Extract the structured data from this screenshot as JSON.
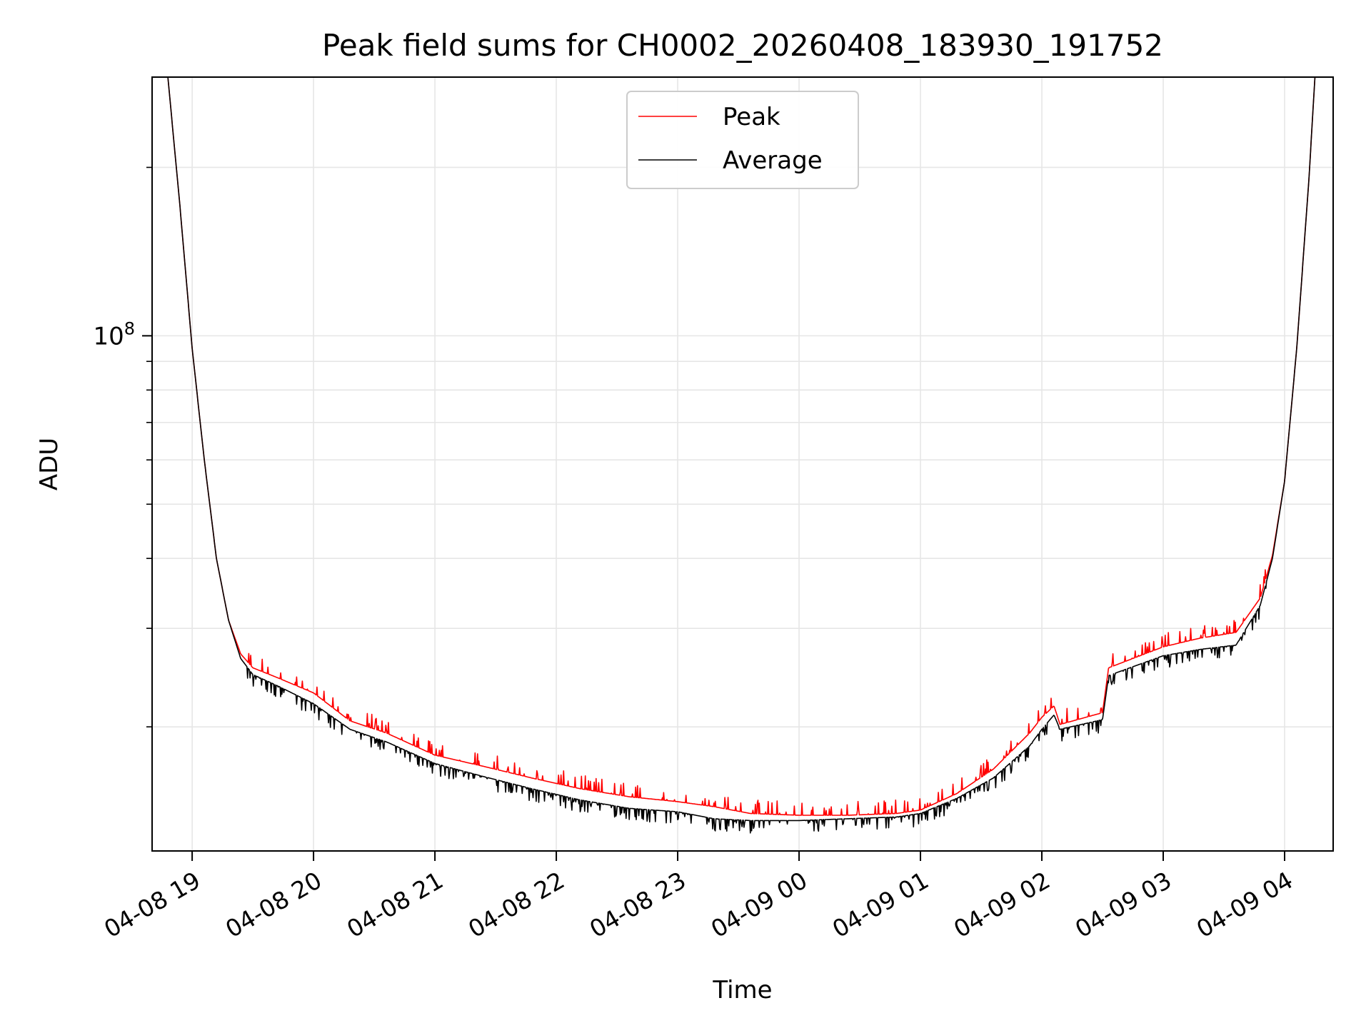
{
  "chart_data": {
    "type": "line",
    "title": "Peak field sums for CH0002_20260408_183930_191752",
    "xlabel": "Time",
    "ylabel": "ADU",
    "yscale": "log",
    "ylim": [
      12000000,
      290000000
    ],
    "xlim_hours": [
      -0.33,
      9.4
    ],
    "x_unit": "hours since 2026-04-08 19:00",
    "grid": true,
    "legend_position": "upper-center",
    "x_ticks": [
      {
        "hour": 0,
        "label": "04-08 19"
      },
      {
        "hour": 1,
        "label": "04-08 20"
      },
      {
        "hour": 2,
        "label": "04-08 21"
      },
      {
        "hour": 3,
        "label": "04-08 22"
      },
      {
        "hour": 4,
        "label": "04-08 23"
      },
      {
        "hour": 5,
        "label": "04-09 00"
      },
      {
        "hour": 6,
        "label": "04-09 01"
      },
      {
        "hour": 7,
        "label": "04-09 02"
      },
      {
        "hour": 8,
        "label": "04-09 03"
      },
      {
        "hour": 9,
        "label": "04-09 04"
      }
    ],
    "y_major_ticks": [
      {
        "value": 100000000,
        "label_base": "10",
        "label_exp": "8"
      }
    ],
    "y_minor_ticks": [
      20000000,
      30000000,
      40000000,
      50000000,
      60000000,
      70000000,
      80000000,
      90000000,
      200000000
    ],
    "series": [
      {
        "name": "Peak",
        "color": "#ff0000",
        "x": [
          -0.2,
          -0.1,
          0.0,
          0.1,
          0.2,
          0.3,
          0.4,
          0.5,
          0.7,
          1.0,
          1.3,
          1.6,
          2.0,
          2.4,
          2.8,
          3.2,
          3.6,
          4.0,
          4.3,
          4.6,
          5.0,
          5.4,
          5.8,
          6.0,
          6.3,
          6.6,
          6.9,
          7.0,
          7.1,
          7.15,
          7.5,
          7.55,
          8.0,
          8.3,
          8.6,
          8.8,
          8.9,
          9.0,
          9.1,
          9.2,
          9.25
        ],
        "y": [
          290000000,
          170000000,
          95000000,
          60000000,
          40000000,
          31000000,
          27000000,
          25500000,
          24500000,
          23000000,
          20500000,
          19500000,
          17800000,
          17000000,
          16200000,
          15500000,
          15000000,
          14700000,
          14400000,
          14000000,
          13900000,
          13900000,
          14000000,
          14200000,
          15200000,
          16800000,
          19500000,
          20800000,
          21800000,
          20200000,
          21200000,
          25500000,
          27800000,
          28800000,
          29500000,
          34000000,
          40500000,
          55000000,
          95000000,
          190000000,
          290000000
        ]
      },
      {
        "name": "Average",
        "color": "#000000",
        "x": [
          -0.2,
          -0.1,
          0.0,
          0.1,
          0.2,
          0.3,
          0.4,
          0.5,
          0.7,
          1.0,
          1.3,
          1.6,
          2.0,
          2.4,
          2.8,
          3.2,
          3.6,
          4.0,
          4.3,
          4.6,
          5.0,
          5.4,
          5.8,
          6.0,
          6.3,
          6.6,
          6.9,
          7.0,
          7.1,
          7.15,
          7.5,
          7.55,
          8.0,
          8.3,
          8.6,
          8.8,
          8.9,
          9.0,
          9.1,
          9.2,
          9.25
        ],
        "y": [
          290000000,
          170000000,
          95000000,
          60000000,
          40000000,
          31000000,
          26500000,
          24800000,
          23700000,
          22000000,
          19800000,
          18800000,
          17200000,
          16300000,
          15500000,
          14800000,
          14300000,
          14100000,
          13700000,
          13600000,
          13600000,
          13700000,
          13800000,
          14000000,
          14900000,
          16200000,
          18500000,
          19800000,
          21000000,
          19800000,
          20600000,
          24700000,
          26800000,
          27500000,
          28000000,
          33000000,
          40000000,
          55000000,
          95000000,
          190000000,
          290000000
        ]
      }
    ]
  }
}
